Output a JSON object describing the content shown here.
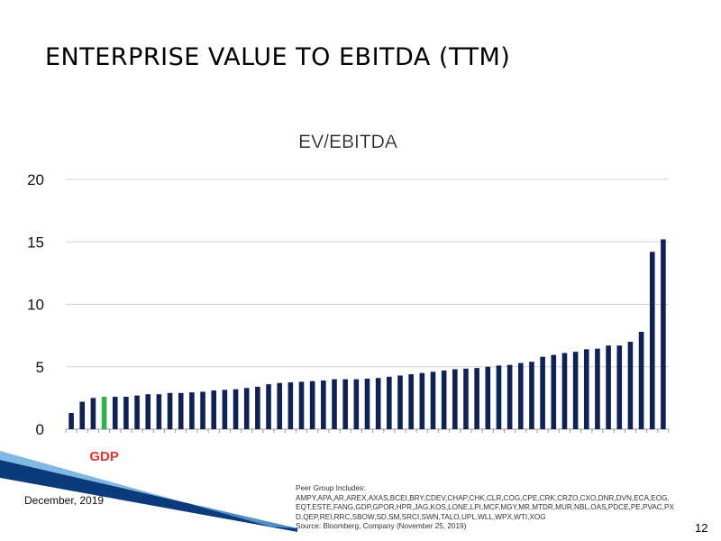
{
  "slide": {
    "title": "ENTERPRISE VALUE TO EBITDA (TTM)",
    "date": "December, 2019",
    "page_number": "12",
    "peer_group_heading": "Peer Group Includes:",
    "peer_group_list": "AMPY,APA,AR,AREX,AXAS,BCEI,BRY,CDEV,CHAP,CHK,CLR,COG,CPE,CRK,CRZO,CXO,DNR,DVN,ECA,EOG,EQT,ESTE,FANG,GDP,GPOR,HPR,JAG,KOS,LONE,LPI,MCF,MGY,MR,MTDR,MUR,NBL,OAS,PDCE,PE,PVAC,PXD,QEP,REI,RRC,SBOW,SD,SM,SRCI,SWN,TALO,UPL,WLL,WPX,WTI,XOG",
    "source": "Source: Bloomberg, Company (November 25, 2019)"
  },
  "colors": {
    "bar": "#0f2257",
    "highlight_bar": "#2db34a",
    "highlight_label": "#e8342f",
    "grid": "#d0d0d0",
    "swoosh_dark": "#0b3b7a",
    "swoosh_light": "#5fa7dc"
  },
  "chart_data": {
    "type": "bar",
    "title": "EV/EBITDA",
    "xlabel": "",
    "ylabel": "",
    "ylim": [
      0,
      20
    ],
    "yticks": [
      "0",
      "5",
      "10",
      "15",
      "20"
    ],
    "grid": "horizontal",
    "highlight_index": 3,
    "highlight_label": "GDP",
    "values": [
      1.3,
      2.2,
      2.5,
      2.6,
      2.6,
      2.6,
      2.7,
      2.8,
      2.8,
      2.9,
      2.9,
      2.95,
      3.0,
      3.1,
      3.15,
      3.2,
      3.3,
      3.4,
      3.6,
      3.7,
      3.75,
      3.8,
      3.85,
      3.9,
      4.0,
      4.0,
      4.0,
      4.05,
      4.1,
      4.2,
      4.3,
      4.4,
      4.5,
      4.6,
      4.7,
      4.8,
      4.85,
      4.9,
      5.0,
      5.1,
      5.15,
      5.3,
      5.4,
      5.8,
      5.95,
      6.1,
      6.2,
      6.4,
      6.45,
      6.7,
      6.7,
      7.0,
      7.8,
      14.2,
      15.2
    ]
  }
}
